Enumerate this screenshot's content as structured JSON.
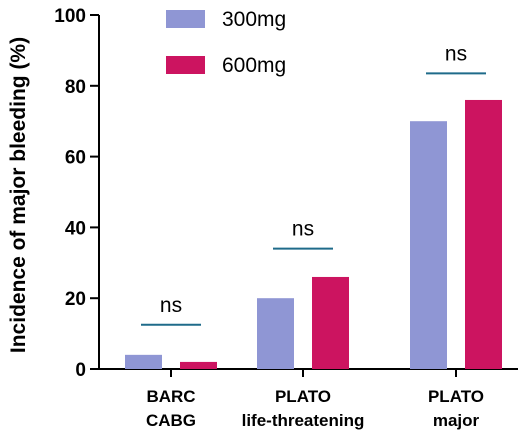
{
  "chart_data": {
    "type": "bar",
    "ylabel": "Incidence of major bleeding (%)",
    "ylim": [
      0,
      100
    ],
    "yticks": [
      0,
      20,
      40,
      60,
      80,
      100
    ],
    "categories": [
      [
        "BARC",
        "CABG"
      ],
      [
        "PLATO",
        "life-threatening"
      ],
      [
        "PLATO",
        "major"
      ]
    ],
    "series": [
      {
        "name": "300mg",
        "color": "#8f96d4",
        "values": [
          4,
          20,
          70
        ]
      },
      {
        "name": "600mg",
        "color": "#cc1460",
        "values": [
          2,
          26,
          76
        ]
      }
    ],
    "annotations": [
      {
        "category_index": 0,
        "text": "ns",
        "line_value": 12.5
      },
      {
        "category_index": 1,
        "text": "ns",
        "line_value": 34
      },
      {
        "category_index": 2,
        "text": "ns",
        "line_value": 83.5
      }
    ],
    "annotation_line_color": "#1f6b8a",
    "legend_position": "top-left",
    "grid": false
  }
}
